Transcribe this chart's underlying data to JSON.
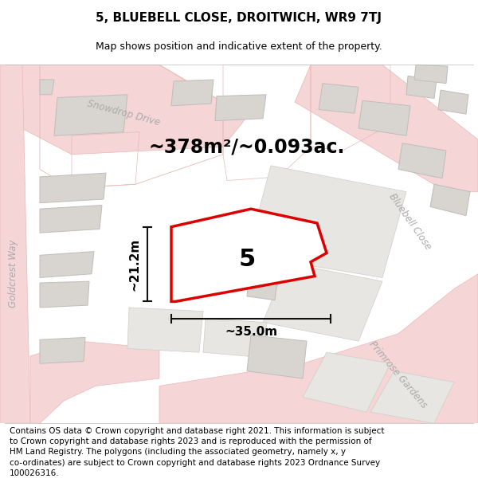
{
  "title": "5, BLUEBELL CLOSE, DROITWICH, WR9 7TJ",
  "subtitle": "Map shows position and indicative extent of the property.",
  "footer": "Contains OS data © Crown copyright and database right 2021. This information is subject\nto Crown copyright and database rights 2023 and is reproduced with the permission of\nHM Land Registry. The polygons (including the associated geometry, namely x, y\nco-ordinates) are subject to Crown copyright and database rights 2023 Ordnance Survey\n100026316.",
  "area_label": "~378m²/~0.093ac.",
  "width_label": "~35.0m",
  "height_label": "~21.2m",
  "plot_number": "5",
  "map_bg": "#f7f5f2",
  "road_color": "#f5d5d5",
  "road_stroke": "#e8b8b8",
  "plot_fill_color": "#e8e6e2",
  "plot_stroke_color": "#d0cdc8",
  "building_fill": "#d8d5d0",
  "building_stroke": "#c0bcb8",
  "highlight_fill": "#ffffff",
  "highlight_stroke": "#dd0000",
  "dim_line_color": "#111111",
  "title_fontsize": 11,
  "subtitle_fontsize": 9,
  "footer_fontsize": 7.5,
  "label_fontsize": 11,
  "area_fontsize": 17,
  "plot_num_fontsize": 22,
  "street_label_color": "#aaaaaa",
  "street_label_fontsize": 8.5
}
